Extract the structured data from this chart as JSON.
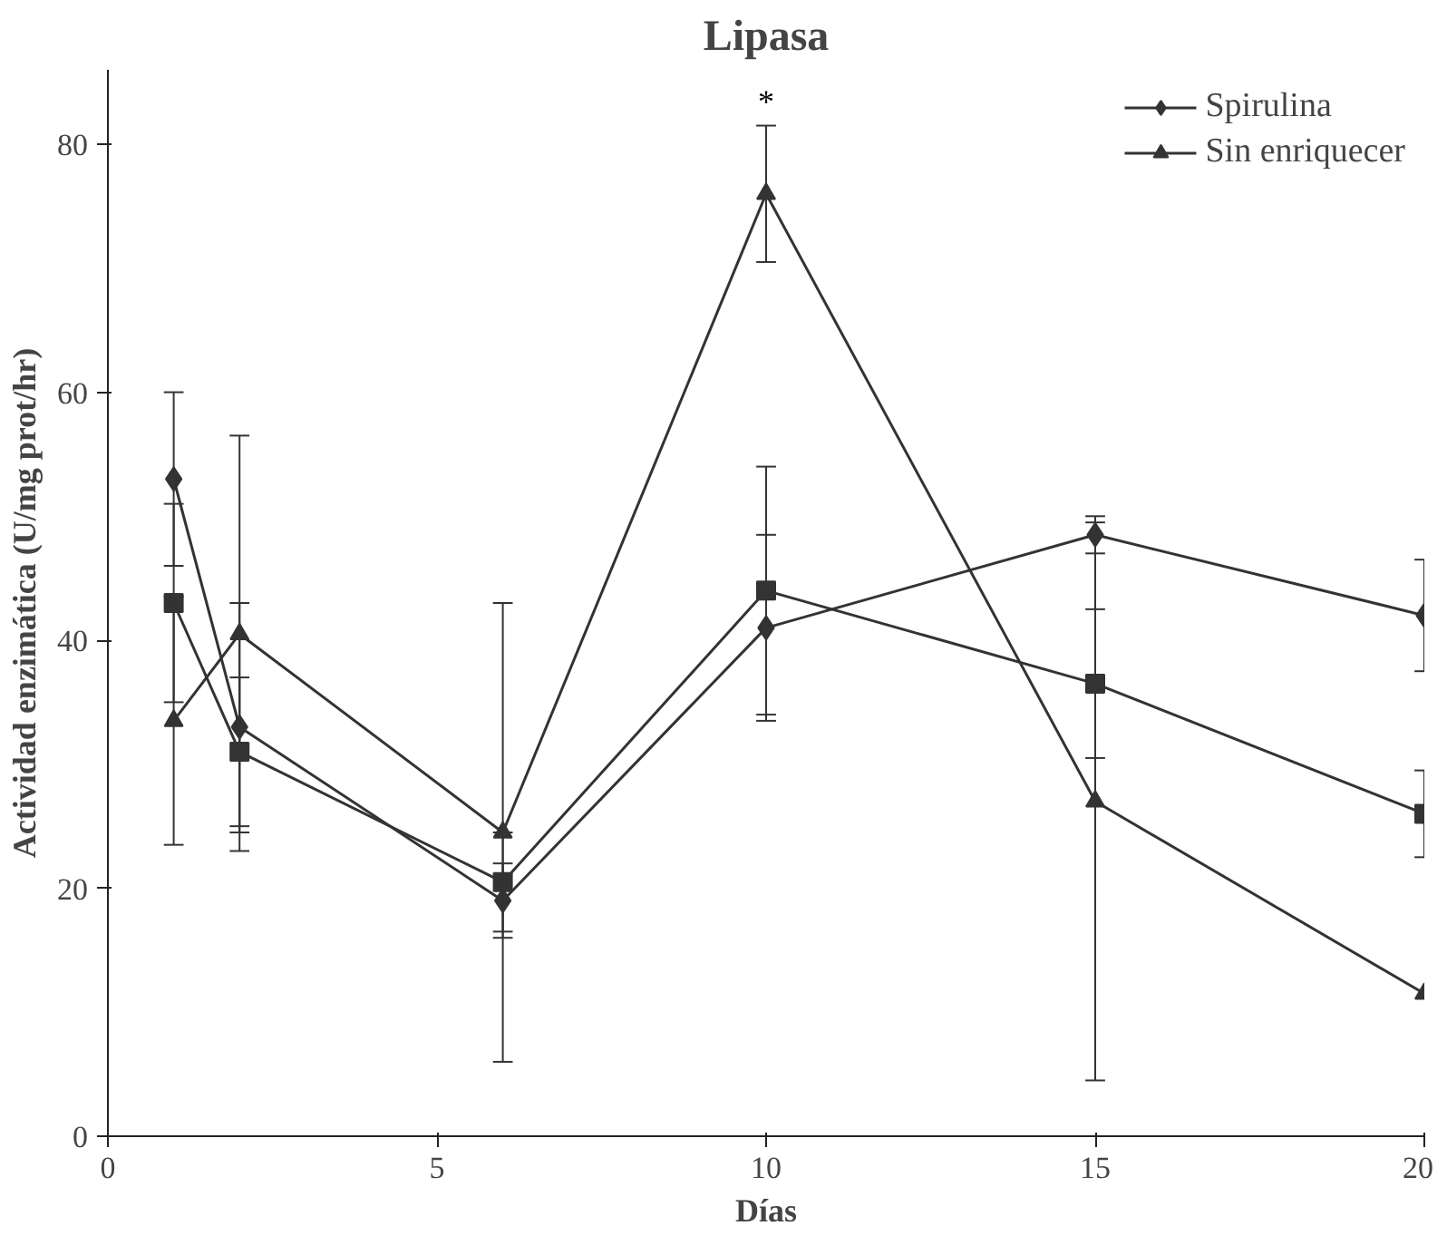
{
  "chart_data": {
    "type": "line",
    "title": "Lipasa",
    "xlabel": "Días",
    "ylabel": "Actividad enzimática (U/mg prot/hr)",
    "x": [
      1,
      2,
      6,
      10,
      15,
      20
    ],
    "series": [
      {
        "name": "Spirulina",
        "color": "#333333",
        "marker": "diamond",
        "values": [
          53,
          33,
          19,
          41,
          48.5,
          42
        ],
        "errors": [
          7,
          10,
          3,
          7.5,
          1.5,
          4.5
        ]
      },
      {
        "color": "#333333",
        "marker": "square",
        "values": [
          43,
          31,
          20.5,
          44,
          36.5,
          26
        ],
        "errors": [
          8,
          6,
          4,
          10,
          6,
          3.5
        ]
      },
      {
        "name": "Sin enriquecer",
        "color": "#333333",
        "marker": "triangle",
        "values": [
          33.5,
          40.5,
          24.5,
          76,
          27,
          11.5
        ],
        "errors": [
          10,
          16,
          18.5,
          5.5,
          22.5,
          null
        ]
      }
    ],
    "annotations": [
      {
        "text": "*",
        "x": 10,
        "y": 82
      }
    ],
    "xlim": [
      0,
      20
    ],
    "ylim": [
      0,
      86
    ],
    "xticks": [
      0,
      5,
      10,
      15,
      20
    ],
    "yticks": [
      0,
      20,
      40,
      60,
      80
    ],
    "grid": false,
    "legend": "top right",
    "line_style": "solid"
  }
}
